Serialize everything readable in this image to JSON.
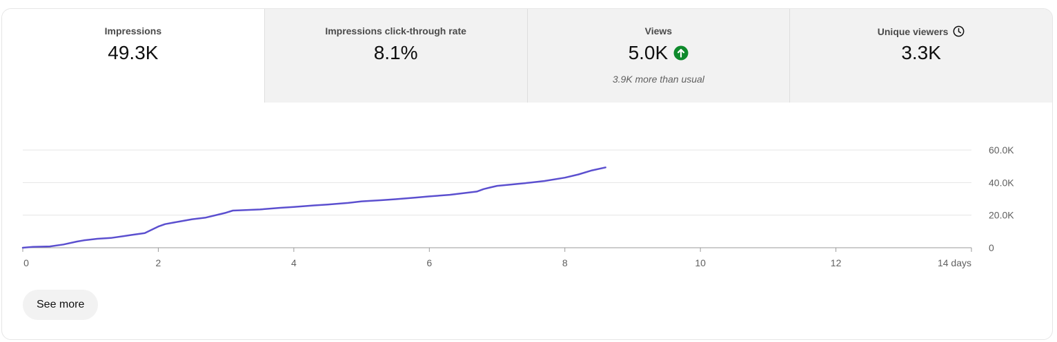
{
  "metrics": [
    {
      "label": "Impressions",
      "value": "49.3K",
      "note": ""
    },
    {
      "label": "Impressions click-through rate",
      "value": "8.1%",
      "note": ""
    },
    {
      "label": "Views",
      "value": "5.0K",
      "note": "3.9K more than usual",
      "trend_icon": "arrow-up-circle-icon",
      "trend_color": "#0f8a2c"
    },
    {
      "label": "Unique viewers",
      "value": "3.3K",
      "note": "",
      "info_icon": "clock-icon"
    }
  ],
  "active_metric": 0,
  "button": {
    "see_more": "See more"
  },
  "colors": {
    "line": "#5b4fcf",
    "grid": "#e5e5e5",
    "axis": "#9a9a9a"
  },
  "chart_data": {
    "type": "line",
    "xlim": [
      0,
      14
    ],
    "ylim": [
      0,
      60000
    ],
    "x_ticks": [
      "0",
      "2",
      "4",
      "6",
      "8",
      "10",
      "12",
      "14 days"
    ],
    "y_ticks": [
      "0",
      "20.0K",
      "40.0K",
      "60.0K"
    ],
    "y_tick_values": [
      0,
      20000,
      40000,
      60000
    ],
    "x_tick_values": [
      0,
      2,
      4,
      6,
      8,
      10,
      12,
      14
    ],
    "grid": true,
    "series": [
      {
        "x": [
          0,
          0.15,
          0.4,
          0.6,
          0.8,
          0.9,
          1.1,
          1.3,
          1.5,
          1.6,
          1.8,
          1.9,
          2.0,
          2.1,
          2.3,
          2.5,
          2.7,
          2.9,
          3.0,
          3.1,
          3.2,
          3.5,
          3.8,
          4.0,
          4.3,
          4.5,
          4.8,
          5.0,
          5.3,
          5.5,
          5.8,
          6.0,
          6.3,
          6.5,
          6.7,
          6.8,
          6.9,
          7.0,
          7.2,
          7.5,
          7.7,
          8.0,
          8.2,
          8.4,
          8.6
        ],
        "y": [
          0,
          500,
          800,
          2000,
          3800,
          4500,
          5500,
          6000,
          7200,
          7800,
          9000,
          11000,
          13000,
          14500,
          16000,
          17500,
          18500,
          20500,
          21500,
          22800,
          23000,
          23500,
          24500,
          25000,
          26000,
          26500,
          27500,
          28500,
          29200,
          29800,
          30800,
          31500,
          32500,
          33500,
          34500,
          36000,
          37000,
          38000,
          38800,
          40000,
          41000,
          43000,
          45000,
          47500,
          49300
        ]
      }
    ]
  }
}
